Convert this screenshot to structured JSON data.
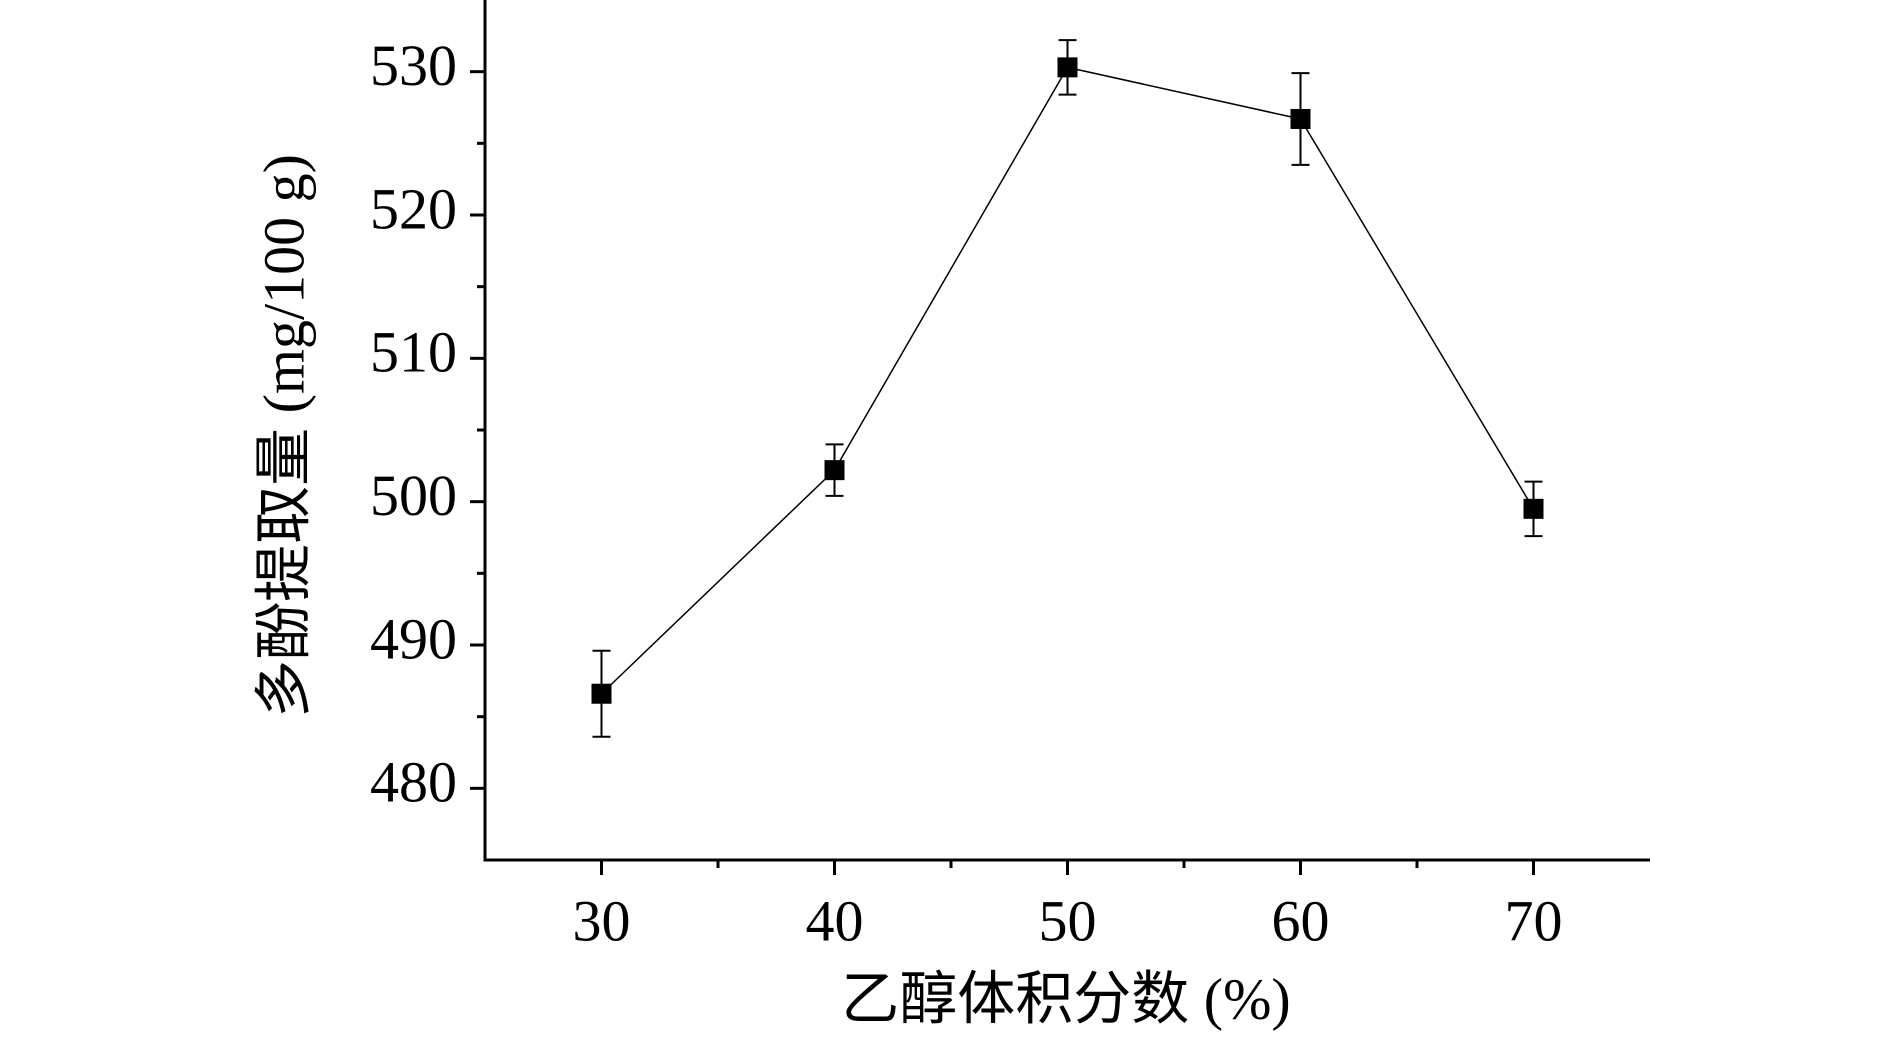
{
  "chart_data": {
    "type": "line",
    "x_label": "乙醇体积分数 (%)",
    "y_label": "多酚提取量 (mg/100 g)",
    "x": [
      30,
      40,
      50,
      60,
      70
    ],
    "values": [
      486.6,
      502.2,
      530.3,
      526.7,
      499.5
    ],
    "errors": [
      3.0,
      1.8,
      1.9,
      3.2,
      1.9
    ],
    "color": "#000000",
    "xlim": [
      25,
      75
    ],
    "xticks": [
      30,
      40,
      50,
      60,
      70
    ],
    "ylim": [
      475,
      535
    ],
    "yticks": [
      480,
      490,
      500,
      510,
      520,
      530
    ]
  }
}
